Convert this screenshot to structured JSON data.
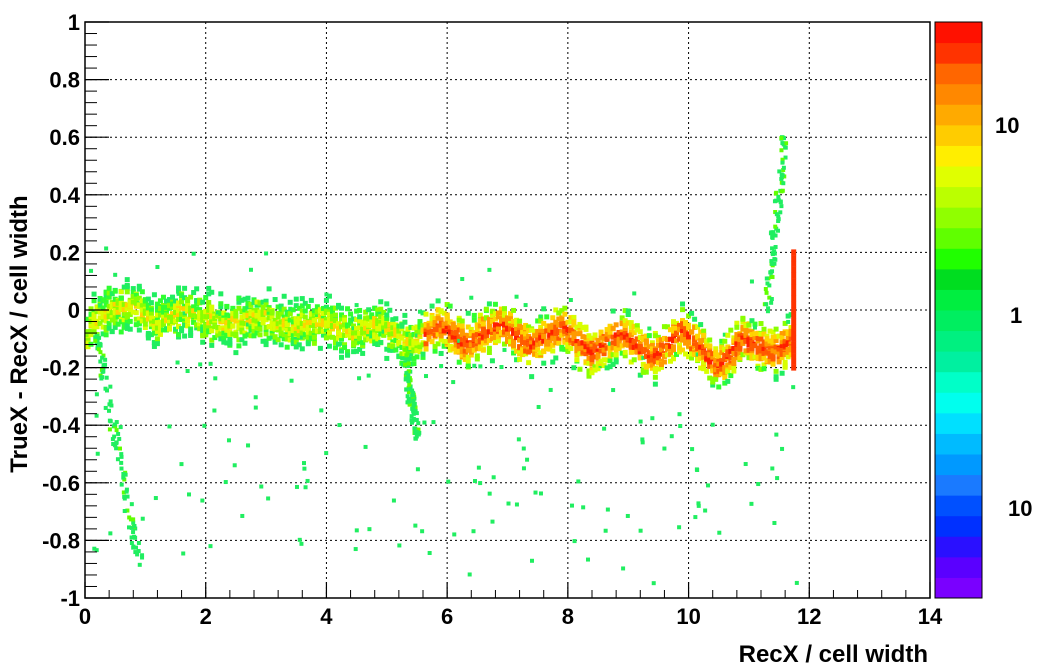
{
  "chart_data": {
    "type": "heatmap",
    "xlabel": "RecX / cell width",
    "ylabel": "TrueX - RecX / cell width",
    "xlim": [
      0,
      14
    ],
    "ylim": [
      -1,
      1
    ],
    "x_ticks": [
      "0",
      "2",
      "4",
      "6",
      "8",
      "10",
      "12",
      "14"
    ],
    "y_ticks": [
      "-1",
      "-0.8",
      "-0.6",
      "-0.4",
      "-0.2",
      "0",
      "0.2",
      "0.4",
      "0.6",
      "0.8",
      "1"
    ],
    "grid": true,
    "grid_style": "dotted",
    "scale": "log",
    "palette_labels": [
      "10",
      "1",
      "10"
    ],
    "palette_colors": [
      "#7a00ff",
      "#5a00ff",
      "#2a10ff",
      "#0030ff",
      "#0050ff",
      "#1a7aff",
      "#0099ff",
      "#00bbff",
      "#00e0ff",
      "#00ffee",
      "#00ffc8",
      "#00f0a0",
      "#00f080",
      "#00ee60",
      "#00ee40",
      "#00dd20",
      "#20ff00",
      "#60ff00",
      "#90ff00",
      "#bbff00",
      "#e0ff00",
      "#ffee00",
      "#ffcc00",
      "#ffaa00",
      "#ff8800",
      "#ff6600",
      "#ff3300",
      "#ff1100"
    ],
    "band": [
      {
        "x": 0.1,
        "y": -0.05
      },
      {
        "x": 0.4,
        "y": 0.0
      },
      {
        "x": 0.8,
        "y": 0.02
      },
      {
        "x": 1.2,
        "y": -0.05
      },
      {
        "x": 1.6,
        "y": 0.0
      },
      {
        "x": 2.0,
        "y": -0.03
      },
      {
        "x": 2.4,
        "y": -0.05
      },
      {
        "x": 2.9,
        "y": -0.02
      },
      {
        "x": 3.4,
        "y": -0.06
      },
      {
        "x": 3.9,
        "y": -0.04
      },
      {
        "x": 4.4,
        "y": -0.08
      },
      {
        "x": 4.9,
        "y": -0.05
      },
      {
        "x": 5.4,
        "y": -0.12
      },
      {
        "x": 5.9,
        "y": -0.05
      },
      {
        "x": 6.3,
        "y": -0.12
      },
      {
        "x": 6.9,
        "y": -0.05
      },
      {
        "x": 7.4,
        "y": -0.13
      },
      {
        "x": 7.9,
        "y": -0.06
      },
      {
        "x": 8.4,
        "y": -0.15
      },
      {
        "x": 8.9,
        "y": -0.08
      },
      {
        "x": 9.4,
        "y": -0.17
      },
      {
        "x": 9.9,
        "y": -0.07
      },
      {
        "x": 10.5,
        "y": -0.2
      },
      {
        "x": 10.9,
        "y": -0.1
      },
      {
        "x": 11.4,
        "y": -0.15
      },
      {
        "x": 11.75,
        "y": -0.1
      }
    ],
    "tails": [
      {
        "x0": 0.2,
        "y0": -0.1,
        "x1": 0.9,
        "y1": -0.88
      },
      {
        "x0": 5.3,
        "y0": -0.15,
        "x1": 5.5,
        "y1": -0.45
      },
      {
        "x0": 11.3,
        "y0": 0.0,
        "x1": 11.6,
        "y1": 0.6
      }
    ],
    "edge_spike": {
      "x": 11.75,
      "y_range": [
        -0.2,
        0.2
      ]
    }
  }
}
